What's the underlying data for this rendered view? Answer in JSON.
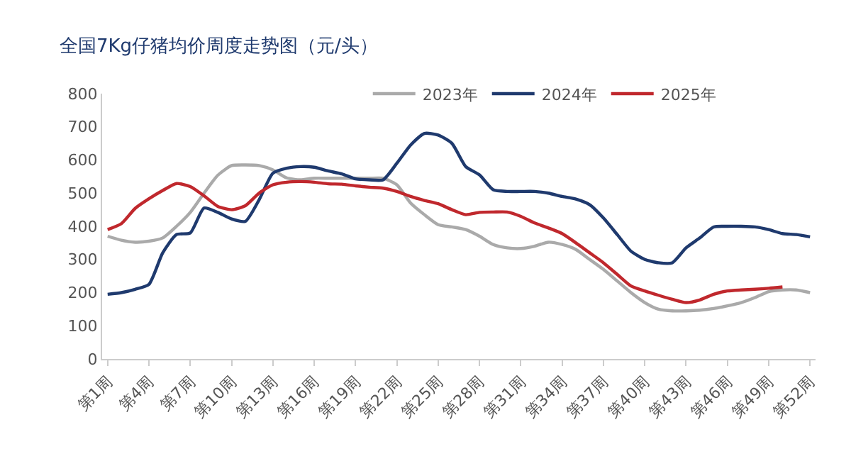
{
  "chart_data": {
    "type": "line",
    "title": "全国7Kg仔猪均价周度走势图（元/头）",
    "categories": [
      "第1周",
      null,
      null,
      "第4周",
      null,
      null,
      "第7周",
      null,
      null,
      "第10周",
      null,
      null,
      "第13周",
      null,
      null,
      "第16周",
      null,
      null,
      "第19周",
      null,
      null,
      "第22周",
      null,
      null,
      "第25周",
      null,
      null,
      "第28周",
      null,
      null,
      "第31周",
      null,
      null,
      "第34周",
      null,
      null,
      "第37周",
      null,
      null,
      "第40周",
      null,
      null,
      "第43周",
      null,
      null,
      "第46周",
      null,
      null,
      "第49周",
      null,
      null,
      "第52周"
    ],
    "series": [
      {
        "name": "2023年",
        "color": "#aaaaaa",
        "values": [
          370,
          358,
          352,
          355,
          365,
          400,
          442,
          500,
          554,
          583,
          585,
          583,
          570,
          546,
          540,
          545,
          545,
          545,
          545,
          545,
          545,
          525,
          470,
          435,
          405,
          398,
          390,
          370,
          345,
          335,
          333,
          340,
          352,
          345,
          330,
          300,
          270,
          235,
          200,
          170,
          150,
          145,
          145,
          147,
          152,
          160,
          170,
          185,
          203,
          208,
          208,
          200
        ]
      },
      {
        "name": "2024年",
        "color": "#1f3a6e",
        "values": [
          195,
          200,
          210,
          225,
          320,
          375,
          380,
          455,
          442,
          422,
          415,
          480,
          560,
          575,
          580,
          578,
          567,
          558,
          543,
          540,
          540,
          590,
          645,
          680,
          675,
          650,
          580,
          555,
          510,
          505,
          505,
          505,
          500,
          490,
          482,
          465,
          425,
          375,
          325,
          300,
          290,
          290,
          335,
          365,
          398,
          400,
          400,
          398,
          390,
          378,
          375,
          368
        ]
      },
      {
        "name": "2025年",
        "color": "#c0282d",
        "values": [
          390,
          408,
          454,
          483,
          508,
          529,
          520,
          492,
          460,
          450,
          462,
          500,
          525,
          533,
          535,
          533,
          528,
          527,
          522,
          518,
          515,
          505,
          490,
          478,
          468,
          450,
          435,
          442,
          443,
          443,
          430,
          410,
          395,
          378,
          350,
          320,
          290,
          255,
          220,
          205,
          192,
          180,
          170,
          178,
          195,
          205,
          208,
          210,
          213,
          217,
          null,
          null
        ]
      }
    ],
    "ylim": [
      0,
      800
    ],
    "yticks": [
      0,
      100,
      200,
      300,
      400,
      500,
      600,
      700,
      800
    ],
    "grid": false,
    "legend": "top",
    "marker": "none",
    "line_style": "solid"
  }
}
